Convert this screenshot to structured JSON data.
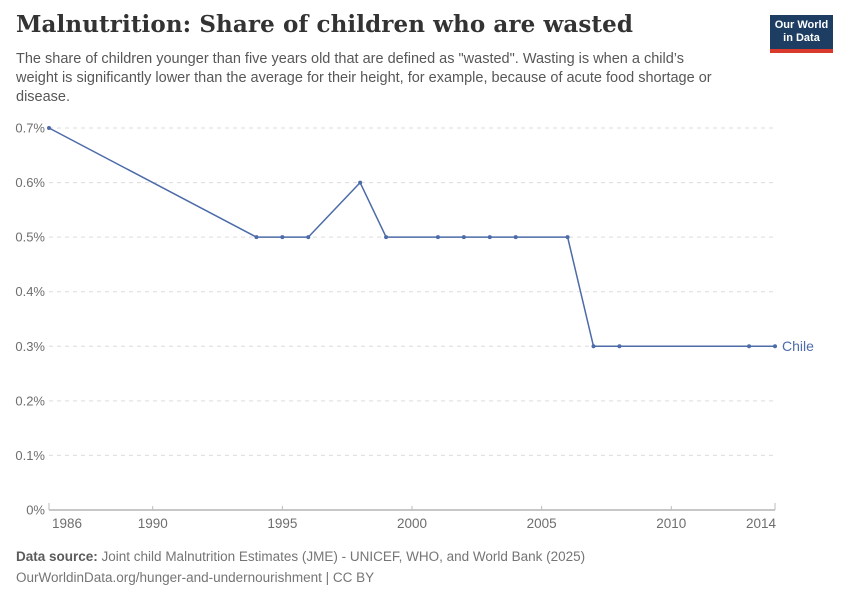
{
  "header": {
    "title": "Malnutrition: Share of children who are wasted",
    "subtitle": "The share of children younger than five years old that are defined as \"wasted\". Wasting is when a child’s weight is significantly lower than the average for their height, for example, because of acute food shortage or disease.",
    "logo": {
      "line1": "Our World",
      "line2": "in Data"
    }
  },
  "chart_data": {
    "type": "line",
    "title": "Malnutrition: Share of children who are wasted",
    "xlabel": "",
    "ylabel": "",
    "xlim": [
      1986,
      2014
    ],
    "ylim": [
      0,
      0.7
    ],
    "grid": "horizontal-dashed",
    "legend_position": "end-of-line",
    "series": [
      {
        "name": "Chile",
        "color": "#4C6BA8",
        "points": [
          [
            1986,
            0.7
          ],
          [
            1994,
            0.5
          ],
          [
            1995,
            0.5
          ],
          [
            1996,
            0.5
          ],
          [
            1998,
            0.6
          ],
          [
            1999,
            0.5
          ],
          [
            2001,
            0.5
          ],
          [
            2002,
            0.5
          ],
          [
            2003,
            0.5
          ],
          [
            2004,
            0.5
          ],
          [
            2006,
            0.5
          ],
          [
            2007,
            0.3
          ],
          [
            2008,
            0.3
          ],
          [
            2013,
            0.3
          ],
          [
            2014,
            0.3
          ]
        ]
      }
    ],
    "yticks": [
      {
        "value": 0,
        "label": "0%"
      },
      {
        "value": 0.1,
        "label": "0.1%"
      },
      {
        "value": 0.2,
        "label": "0.2%"
      },
      {
        "value": 0.3,
        "label": "0.3%"
      },
      {
        "value": 0.4,
        "label": "0.4%"
      },
      {
        "value": 0.5,
        "label": "0.5%"
      },
      {
        "value": 0.6,
        "label": "0.6%"
      },
      {
        "value": 0.7,
        "label": "0.7%"
      }
    ],
    "xticks": [
      {
        "value": 1986,
        "label": "1986"
      },
      {
        "value": 1990,
        "label": "1990"
      },
      {
        "value": 1995,
        "label": "1995"
      },
      {
        "value": 2000,
        "label": "2000"
      },
      {
        "value": 2005,
        "label": "2005"
      },
      {
        "value": 2010,
        "label": "2010"
      },
      {
        "value": 2014,
        "label": "2014"
      }
    ]
  },
  "footer": {
    "source_label": "Data source:",
    "source_text": " Joint child Malnutrition Estimates (JME) - UNICEF, WHO, and World Bank (2025)",
    "note_line": "OurWorldinData.org/hunger-and-undernourishment | CC BY"
  },
  "colors": {
    "line": "#4C6BA8",
    "grid": "#dcdcdc",
    "axis": "#8f8f8f",
    "tick": "#bbbbbb",
    "tick_label": "#6e6e6e",
    "title": "#333333",
    "subtitle": "#575757",
    "footer": "#757575",
    "logo_bg": "#1d3d63",
    "logo_red": "#d93a2b"
  }
}
